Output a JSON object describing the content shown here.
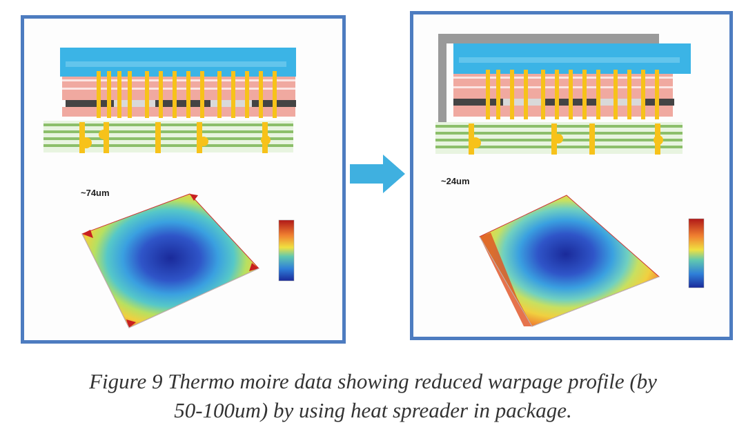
{
  "figure": {
    "caption_line1": "Figure 9 Thermo moire data showing reduced warpage profile (by",
    "caption_line2": "50-100um) by using heat spreader in package."
  },
  "panels": {
    "left": {
      "warpage_label": "~74um",
      "heat_spreader": false
    },
    "right": {
      "warpage_label": "~24um",
      "heat_spreader": true
    }
  },
  "colors": {
    "panel_border": "#4d7cc0",
    "arrow": "#3fb0e0",
    "mold_cap": "#3bb4e6",
    "die_layer": "#f0a9a0",
    "die_dark": "#444444",
    "substrate_green": "#8cbf6a",
    "bump_yellow": "#f7c21a",
    "heat_spreader_gray": "#9a9a9a"
  }
}
